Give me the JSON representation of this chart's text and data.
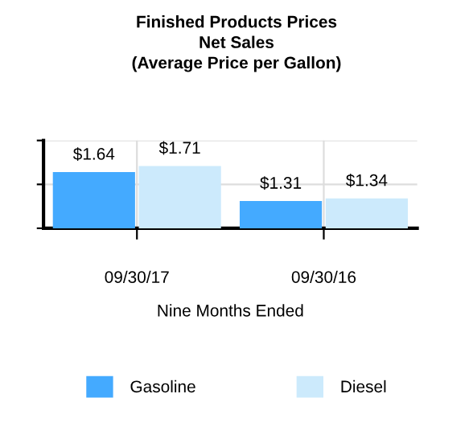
{
  "chart_data": {
    "type": "bar",
    "title": "Finished Products Prices\nNet Sales\n(Average Price per Gallon)",
    "xlabel": "Nine Months Ended",
    "categories": [
      "09/30/17",
      "09/30/16"
    ],
    "series": [
      {
        "name": "Gasoline",
        "color": "#44aaff",
        "values": [
          1.64,
          1.31
        ],
        "value_labels": [
          "$1.64",
          "$1.31"
        ]
      },
      {
        "name": "Diesel",
        "color": "#cceafc",
        "values": [
          1.71,
          1.34
        ],
        "value_labels": [
          "$1.71",
          "$1.34"
        ]
      }
    ],
    "ylim": [
      1,
      2
    ],
    "yticks": [
      {
        "value": 1,
        "label": null
      },
      {
        "value": 1.5,
        "label": null
      },
      {
        "value": 2,
        "label": null
      }
    ],
    "grid": true,
    "legend": "bottom"
  }
}
